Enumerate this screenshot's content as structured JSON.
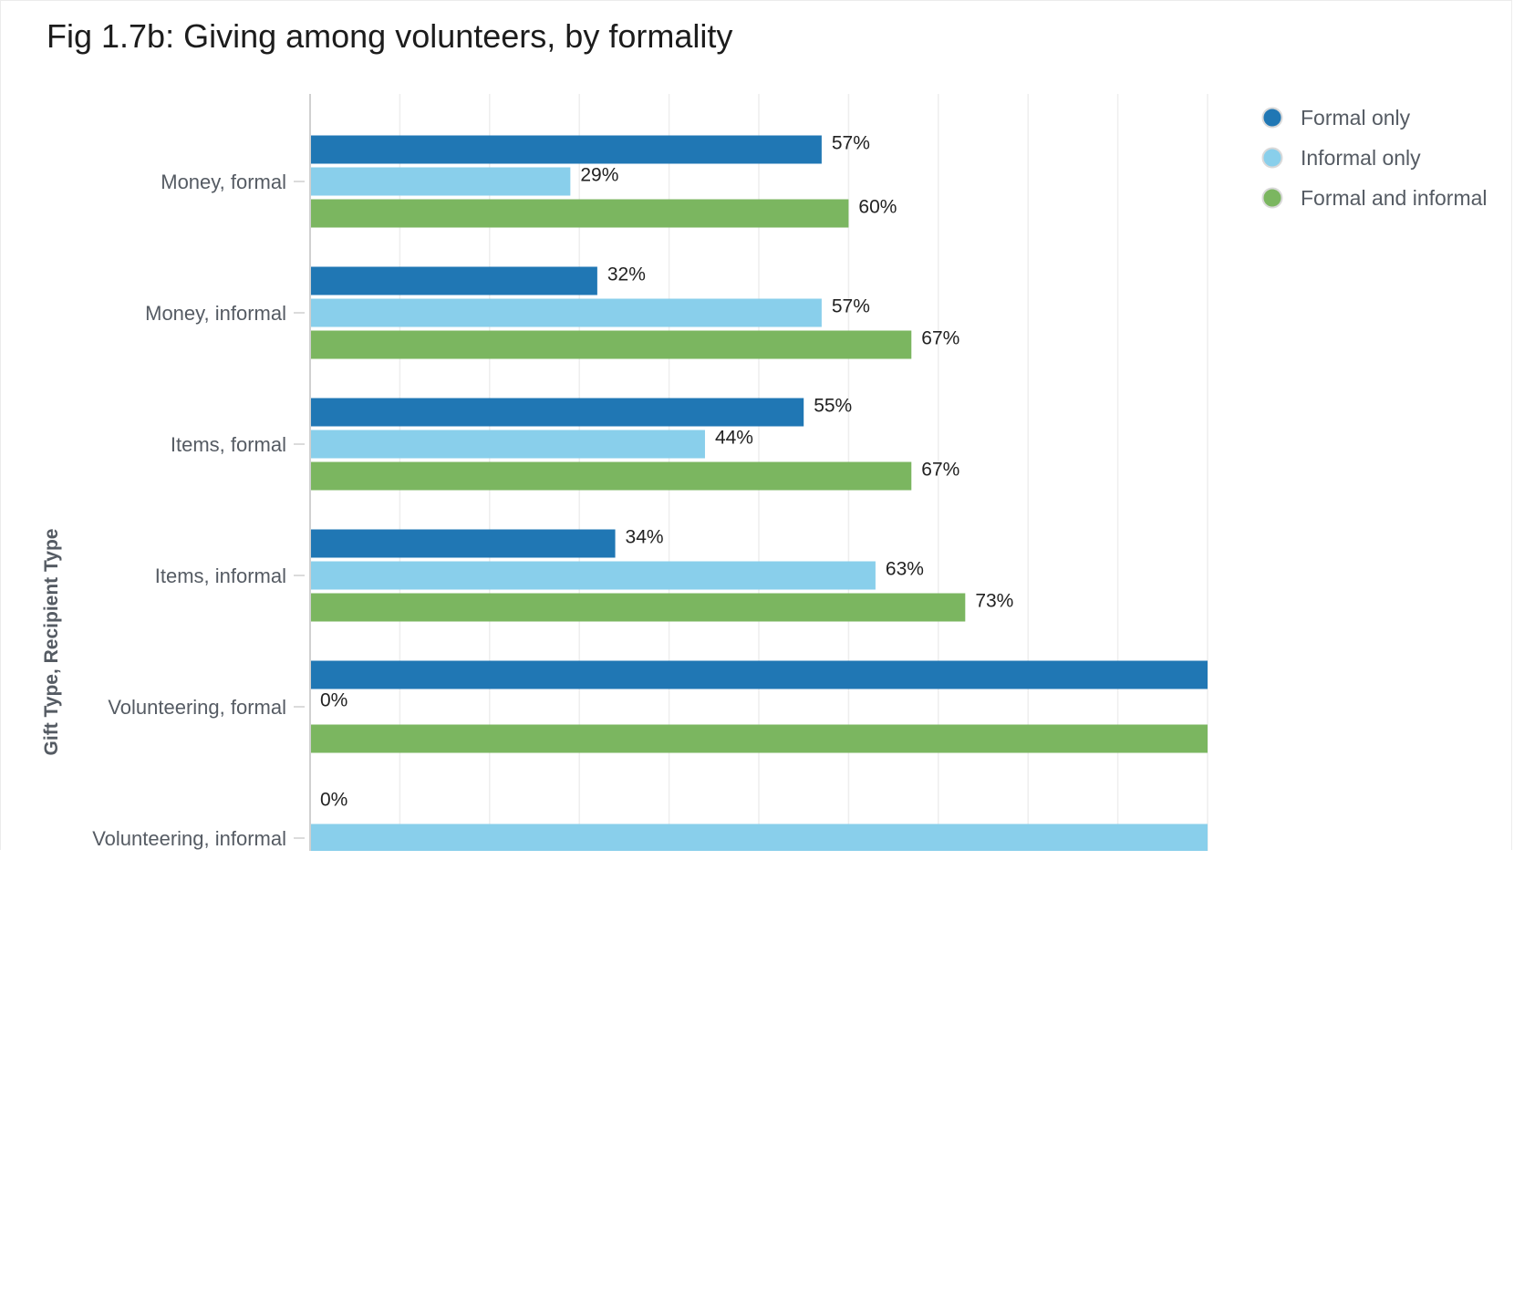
{
  "chart_data": {
    "type": "bar",
    "orientation": "horizontal",
    "title": "Fig 1.7b: Giving among volunteers, by formality",
    "ylabel": "Gift Type, Recipient Type",
    "xlabel": "",
    "xlim": [
      0,
      100
    ],
    "grid": true,
    "legend_position": "top-right",
    "categories": [
      "Money, formal",
      "Money, informal",
      "Items, formal",
      "Items, informal",
      "Volunteering, formal",
      "Volunteering, informal"
    ],
    "series": [
      {
        "name": "Formal only",
        "color": "#2077b4",
        "values": [
          57,
          32,
          55,
          34,
          100,
          null
        ],
        "labels": [
          "57%",
          "32%",
          "55%",
          "34%",
          "",
          "0%"
        ]
      },
      {
        "name": "Informal only",
        "color": "#89cfeb",
        "values": [
          29,
          57,
          44,
          63,
          0,
          100
        ],
        "labels": [
          "29%",
          "57%",
          "44%",
          "63%",
          "0%",
          ""
        ]
      },
      {
        "name": "Formal and informal",
        "color": "#7bb660",
        "values": [
          60,
          67,
          67,
          73,
          100,
          null
        ],
        "labels": [
          "60%",
          "67%",
          "67%",
          "73%",
          "",
          ""
        ]
      }
    ]
  }
}
